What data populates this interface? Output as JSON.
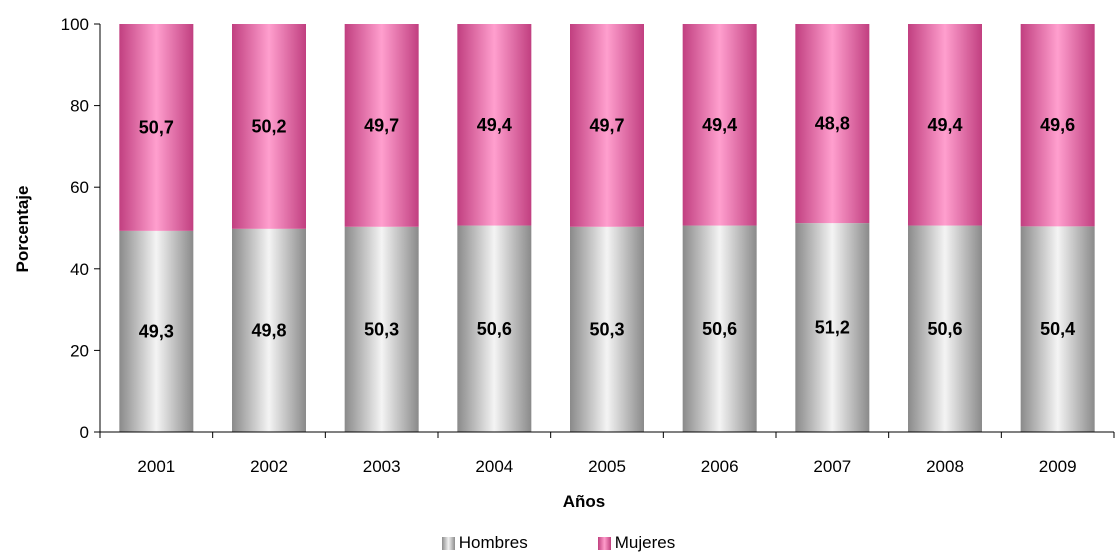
{
  "chart_data": {
    "type": "bar",
    "stacked": true,
    "categories": [
      "2001",
      "2002",
      "2003",
      "2004",
      "2005",
      "2006",
      "2007",
      "2008",
      "2009"
    ],
    "series": [
      {
        "name": "Hombres",
        "values": [
          49.3,
          49.8,
          50.3,
          50.6,
          50.3,
          50.6,
          51.2,
          50.6,
          50.4
        ],
        "labels": [
          "49,3",
          "49,8",
          "50,3",
          "50,6",
          "50,3",
          "50,6",
          "51,2",
          "50,6",
          "50,4"
        ],
        "color": "#d9d9d9"
      },
      {
        "name": "Mujeres",
        "values": [
          50.7,
          50.2,
          49.7,
          49.4,
          49.7,
          49.4,
          48.8,
          49.4,
          49.6
        ],
        "labels": [
          "50,7",
          "50,2",
          "49,7",
          "49,4",
          "49,7",
          "49,4",
          "48,8",
          "49,4",
          "49,6"
        ],
        "color": "#ff8cc6"
      }
    ],
    "xlabel": "Años",
    "ylabel": "Porcentaje",
    "ylim": [
      0,
      100
    ],
    "yticks": [
      "0",
      "20",
      "40",
      "60",
      "80",
      "100"
    ],
    "grid": false,
    "legend_position": "bottom"
  }
}
